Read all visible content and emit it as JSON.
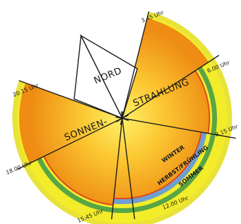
{
  "diagram": {
    "main_text": {
      "part1": "SONNEN-",
      "part2": "STRAHLUNG"
    },
    "north_label": "NORD",
    "times": [
      "3.45 Uhr",
      "6.00 Uhr",
      "8.15 Uhr",
      "12.00 Uhr",
      "15.45 Uhr",
      "18.00 Uhr",
      "20.15 Uhr"
    ],
    "seasons": {
      "summer": "SOMMER",
      "spring_autumn": "HERBST/FRÜHLING",
      "winter": "WINTER"
    },
    "colors": {
      "summer": "#f2ec2a",
      "summer_outer": "#e9e238",
      "spring_autumn": "#58a545",
      "winter": "#6d9fd2",
      "core_light": "#fbd036",
      "core_dark": "#ee8c14",
      "rim": "#e04a1a",
      "north": "#ffffff"
    }
  }
}
